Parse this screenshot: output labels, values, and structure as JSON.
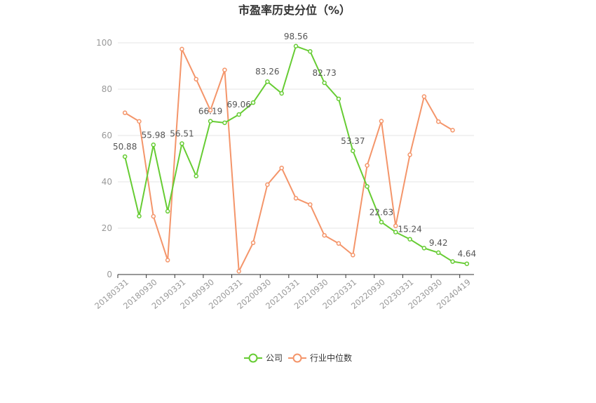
{
  "chart_data": {
    "type": "line",
    "title": "市盈率历史分位（%）",
    "xlabel": "",
    "ylabel": "",
    "ylim": [
      0,
      100
    ],
    "yticks": [
      0,
      20,
      40,
      60,
      80,
      100
    ],
    "grid": true,
    "legend_position": "bottom-center",
    "x": [
      "20180331",
      "20180630",
      "20180930",
      "20181231",
      "20190331",
      "20190630",
      "20190930",
      "20191231",
      "20200331",
      "20200630",
      "20200930",
      "20201231",
      "20210331",
      "20210630",
      "20210930",
      "20211231",
      "20220331",
      "20220630",
      "20220930",
      "20221231",
      "20230331",
      "20230630",
      "20230930",
      "20231231",
      "20240419"
    ],
    "x_tick_labels": [
      "20180331",
      "20180930",
      "20190331",
      "20190930",
      "20200331",
      "20200930",
      "20210331",
      "20210930",
      "20220331",
      "20220930",
      "20230331",
      "20230930",
      "20240419"
    ],
    "series": [
      {
        "name": "公司",
        "color": "#66cc33",
        "values": [
          50.88,
          25.2,
          55.98,
          27.3,
          56.51,
          42.5,
          66.19,
          65.5,
          69.06,
          74.2,
          83.26,
          78.2,
          98.56,
          96.3,
          82.73,
          75.8,
          53.37,
          38.0,
          22.63,
          18.3,
          15.24,
          11.4,
          9.42,
          5.6,
          4.64
        ],
        "labels": [
          "50.88",
          "",
          "55.98",
          "",
          "56.51",
          "",
          "66.19",
          "",
          "69.06",
          "",
          "83.26",
          "",
          "98.56",
          "",
          "82.73",
          "",
          "53.37",
          "",
          "22.63",
          "",
          "15.24",
          "",
          "9.42",
          "",
          "4.64"
        ]
      },
      {
        "name": "行业中位数",
        "color": "#f4956a",
        "values": [
          69.8,
          66.1,
          25.1,
          6.2,
          97.3,
          84.3,
          70.9,
          88.3,
          1.4,
          13.7,
          38.8,
          46.0,
          32.9,
          30.2,
          16.9,
          13.4,
          8.4,
          47.1,
          66.2,
          21.0,
          51.7,
          76.8,
          66.0,
          62.3,
          null
        ]
      }
    ]
  }
}
